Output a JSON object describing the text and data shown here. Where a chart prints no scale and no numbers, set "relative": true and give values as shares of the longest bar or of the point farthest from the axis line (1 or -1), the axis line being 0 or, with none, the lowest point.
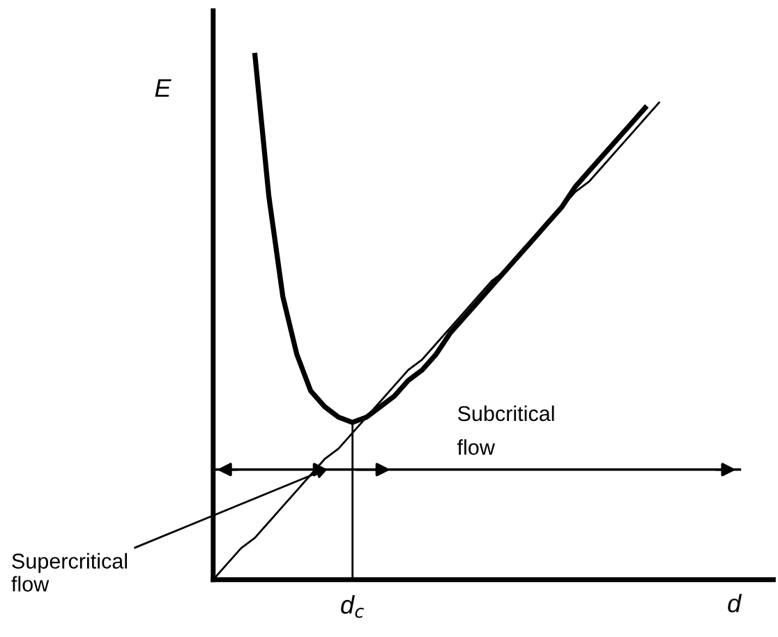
{
  "chart_data": {
    "type": "line",
    "relative": true,
    "xlabel": "d",
    "ylabel": "E",
    "categories": [
      null,
      null,
      null,
      null,
      null,
      null,
      null,
      null,
      null,
      null,
      null,
      null,
      null,
      null,
      null,
      null,
      null,
      null,
      null,
      null,
      null,
      null,
      null,
      null,
      null,
      null,
      null,
      null,
      null,
      null,
      null,
      null,
      null,
      null,
      null,
      null,
      null,
      null,
      null,
      null,
      null
    ],
    "series": [
      {
        "color": "#000000",
        "values": [
          null,
          null,
          null,
          1.0,
          0.73,
          0.54,
          0.43,
          0.36,
          0.33,
          0.31,
          0.3,
          0.31,
          0.33,
          0.35,
          0.38,
          0.4,
          0.43,
          0.47,
          0.5,
          0.53,
          0.56,
          0.59,
          0.62,
          0.65,
          0.68,
          0.71,
          0.75,
          0.78,
          0.81,
          0.84,
          0.87,
          0.9,
          null,
          null,
          null,
          null,
          null,
          null,
          null,
          null,
          null
        ]
      },
      {
        "color": "#000000",
        "values": [
          0,
          0.03,
          0.06,
          0.08,
          0.11,
          0.14,
          0.17,
          0.2,
          0.23,
          0.25,
          0.28,
          0.31,
          0.34,
          0.37,
          0.4,
          0.42,
          0.45,
          0.48,
          0.51,
          0.54,
          0.57,
          0.59,
          0.62,
          0.65,
          0.68,
          0.71,
          0.74,
          0.76,
          0.79,
          0.82,
          0.85,
          0.88,
          0.91,
          null,
          null,
          null,
          null,
          null,
          null,
          null,
          null
        ]
      }
    ],
    "ref_lines": [
      {
        "axis": "y",
        "value": 0.21
      }
    ],
    "annotations": [
      "Subcritical\nflow",
      "Supercritical\nflow",
      "d$_{c}$"
    ],
    "legend": false,
    "marker": "none",
    "line_style": "solid"
  }
}
